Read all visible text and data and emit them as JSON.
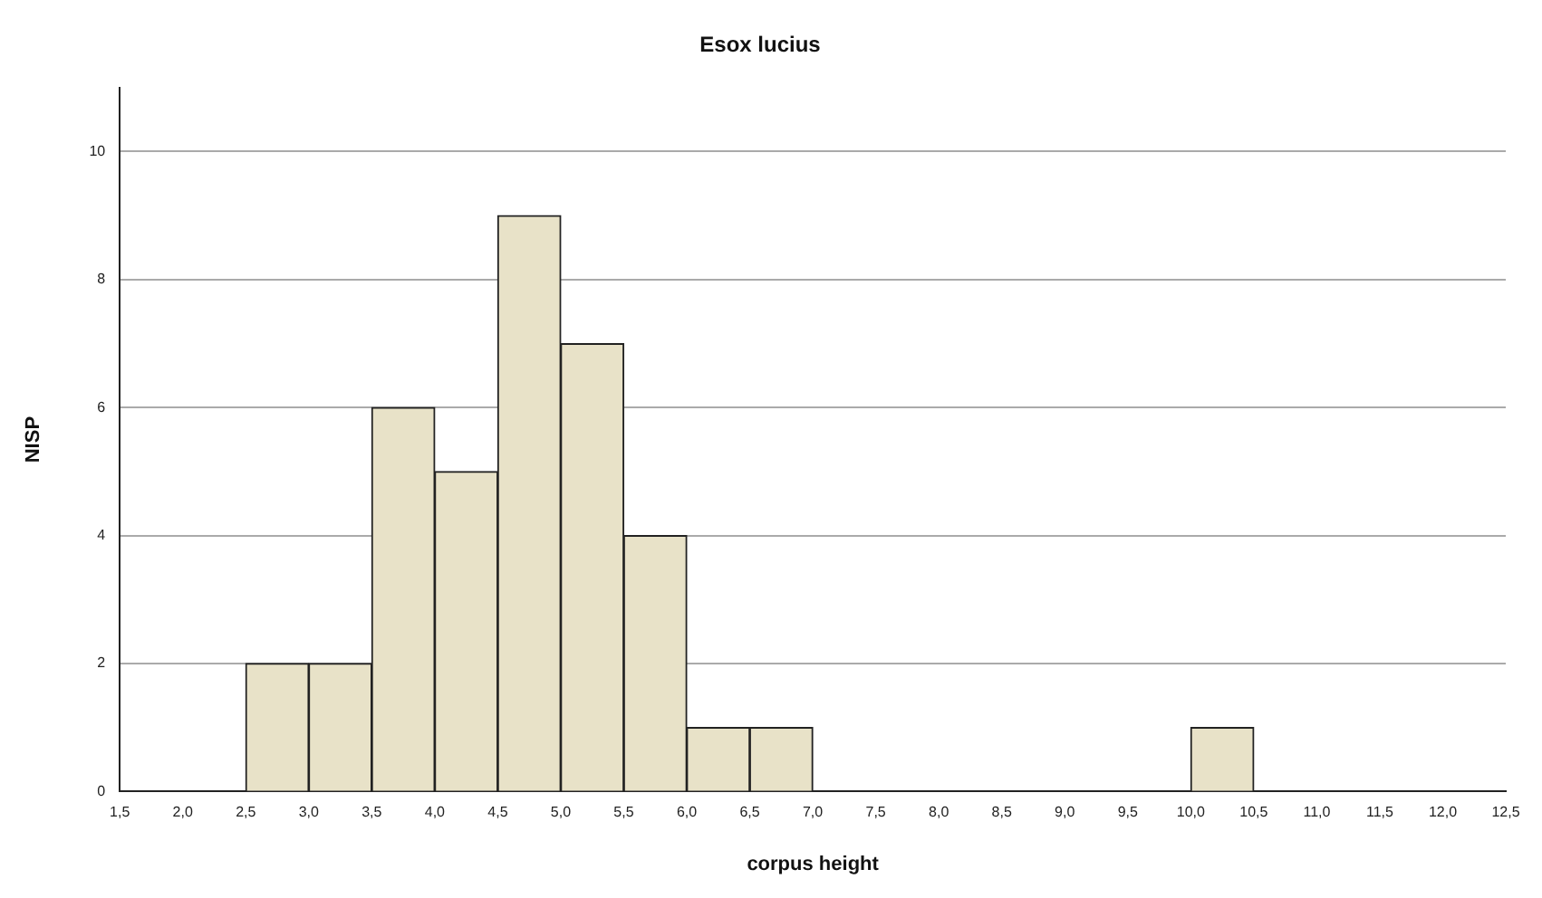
{
  "chart_data": {
    "type": "histogram",
    "title": "Esox lucius",
    "xlabel": "corpus height",
    "ylabel": "NISP",
    "bins": [
      1.5,
      2.0,
      2.5,
      3.0,
      3.5,
      4.0,
      4.5,
      5.0,
      5.5,
      6.0,
      6.5,
      7.0,
      7.5,
      8.0,
      8.5,
      9.0,
      9.5,
      10.0,
      10.5,
      11.0,
      11.5,
      12.0,
      12.5
    ],
    "values": [
      0,
      0,
      2,
      2,
      6,
      5,
      9,
      7,
      4,
      1,
      1,
      0,
      0,
      0,
      0,
      0,
      0,
      1,
      0,
      0,
      0,
      0
    ],
    "color": "#e8e2c8",
    "xlim": [
      1.5,
      12.5
    ],
    "xticks": [
      {
        "value": 1.5,
        "label": "1,5"
      },
      {
        "value": 2.0,
        "label": "2,0"
      },
      {
        "value": 2.5,
        "label": "2,5"
      },
      {
        "value": 3.0,
        "label": "3,0"
      },
      {
        "value": 3.5,
        "label": "3,5"
      },
      {
        "value": 4.0,
        "label": "4,0"
      },
      {
        "value": 4.5,
        "label": "4,5"
      },
      {
        "value": 5.0,
        "label": "5,0"
      },
      {
        "value": 5.5,
        "label": "5,5"
      },
      {
        "value": 6.0,
        "label": "6,0"
      },
      {
        "value": 6.5,
        "label": "6,5"
      },
      {
        "value": 7.0,
        "label": "7,0"
      },
      {
        "value": 7.5,
        "label": "7,5"
      },
      {
        "value": 8.0,
        "label": "8,0"
      },
      {
        "value": 8.5,
        "label": "8,5"
      },
      {
        "value": 9.0,
        "label": "9,0"
      },
      {
        "value": 9.5,
        "label": "9,5"
      },
      {
        "value": 10.0,
        "label": "10,0"
      },
      {
        "value": 10.5,
        "label": "10,5"
      },
      {
        "value": 11.0,
        "label": "11,0"
      },
      {
        "value": 11.5,
        "label": "11,5"
      },
      {
        "value": 12.0,
        "label": "12,0"
      },
      {
        "value": 12.5,
        "label": "12,5"
      }
    ],
    "ylim": [
      0,
      11
    ],
    "yticks": [
      0,
      2,
      4,
      6,
      8,
      10
    ],
    "grid": "y",
    "legend": false
  }
}
